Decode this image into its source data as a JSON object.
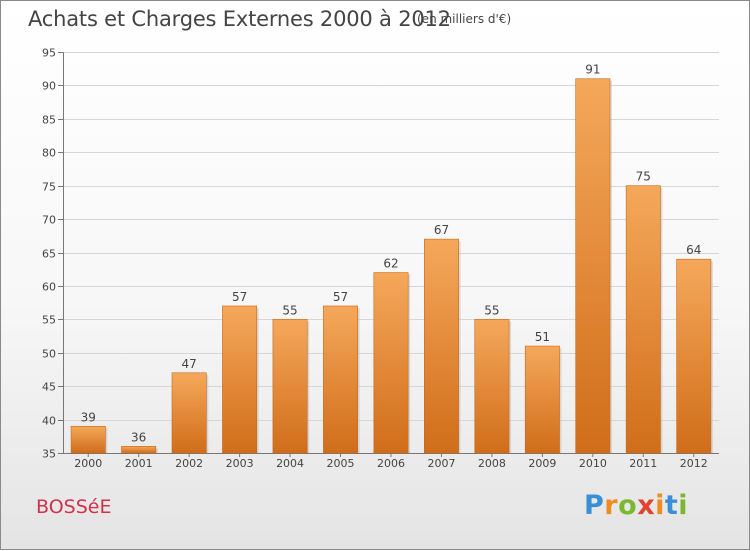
{
  "header": {
    "title": "Achats et Charges Externes 2000 à 2012",
    "subtitle": "(en milliers d'€)"
  },
  "footer": {
    "commune": "BOSSéE",
    "brand_letters": [
      "P",
      "r",
      "o",
      "x",
      "i",
      "t",
      "i"
    ]
  },
  "colors": {
    "bar_light": "#f5a85a",
    "bar_dark": "#d06d1a",
    "commune": "#d1324a",
    "brand": [
      "#3b8fd4",
      "#f08c1e",
      "#7cb82f",
      "#e0452f",
      "#f08c1e",
      "#3b8fd4",
      "#7cb82f"
    ]
  },
  "chart_data": {
    "type": "bar",
    "categories": [
      "2000",
      "2001",
      "2002",
      "2003",
      "2004",
      "2005",
      "2006",
      "2007",
      "2008",
      "2009",
      "2010",
      "2011",
      "2012"
    ],
    "values": [
      39,
      36,
      47,
      57,
      55,
      57,
      62,
      67,
      55,
      51,
      91,
      75,
      64
    ],
    "ylim": [
      35,
      95
    ],
    "yticks": [
      35,
      40,
      45,
      50,
      55,
      60,
      65,
      70,
      75,
      80,
      85,
      90,
      95
    ],
    "grid": true,
    "data_labels": true
  }
}
